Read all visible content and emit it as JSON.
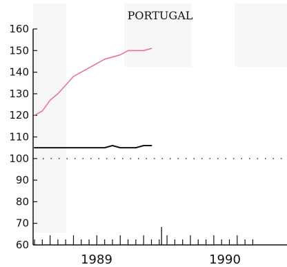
{
  "chart_data": {
    "type": "line",
    "title": "PORTUGAL",
    "xlabel": "",
    "ylabel": "",
    "ylim": [
      60,
      160
    ],
    "y_ticks": [
      60,
      70,
      80,
      90,
      100,
      110,
      120,
      130,
      140,
      150,
      160
    ],
    "x_tick_labels": [
      "1989",
      "1990"
    ],
    "x_domain_months": 28,
    "reference_value": 100,
    "grid": false,
    "legend": "none",
    "series": [
      {
        "color": "#e8739a",
        "x": [
          0,
          1,
          2,
          3,
          4,
          5,
          6,
          7,
          8,
          9,
          10,
          11,
          12,
          13,
          14,
          15
        ],
        "values": [
          120,
          122,
          127,
          130,
          134,
          138,
          140,
          142,
          144,
          146,
          147,
          148,
          150,
          150,
          150,
          151
        ]
      },
      {
        "color": "#111111",
        "x": [
          0,
          1,
          2,
          3,
          4,
          5,
          6,
          7,
          8,
          9,
          10,
          11,
          12,
          13,
          14,
          15
        ],
        "values": [
          105,
          105,
          105,
          105,
          105,
          105,
          105,
          105,
          105,
          105,
          106,
          105,
          105,
          105,
          106,
          106
        ]
      }
    ]
  }
}
